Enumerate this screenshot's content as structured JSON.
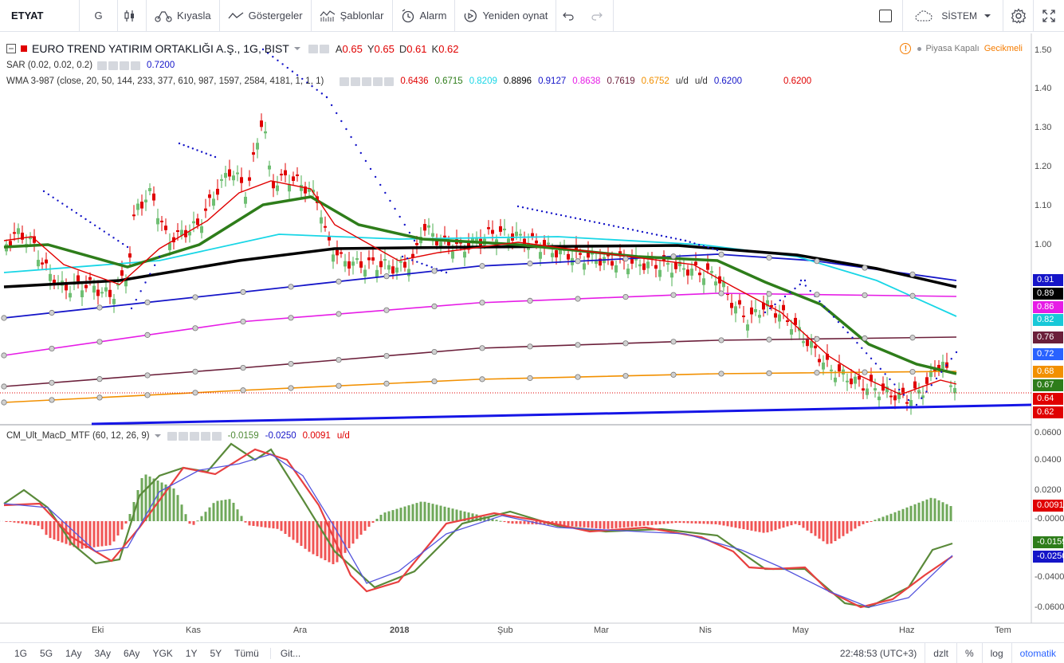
{
  "toolbar": {
    "symbol": "ETYAT",
    "interval": "G",
    "compare": "Kıyasla",
    "indicators": "Göstergeler",
    "templates": "Şablonlar",
    "alert": "Alarm",
    "replay": "Yeniden oynat",
    "system": "SİSTEM"
  },
  "legend": {
    "title": "EURO TREND YATIRIM ORTAKLIĞI A.Ş., 1G, BIST",
    "ohlc": [
      {
        "label": "A",
        "value": "0.65"
      },
      {
        "label": "Y",
        "value": "0.65"
      },
      {
        "label": "D",
        "value": "0.61"
      },
      {
        "label": "K",
        "value": "0.62"
      }
    ],
    "sar": {
      "label": "SAR (0.02, 0.02, 0.2)",
      "value": "0.7200"
    },
    "wma": {
      "label": "WMA 3-987 (close, 20, 50, 144, 233, 377, 610, 987, 1597, 2584, 4181, 1, 1, 1)",
      "values": [
        {
          "v": "0.6436",
          "color": "#e00000"
        },
        {
          "v": "0.6715",
          "color": "#2e7d1a"
        },
        {
          "v": "0.8209",
          "color": "#18d6e6"
        },
        {
          "v": "0.8896",
          "color": "#000000"
        },
        {
          "v": "0.9127",
          "color": "#1515c8"
        },
        {
          "v": "0.8638",
          "color": "#e61ce6"
        },
        {
          "v": "0.7619",
          "color": "#6b1f3a"
        },
        {
          "v": "0.6752",
          "color": "#f29000"
        },
        {
          "v": "u/d",
          "color": "#333333"
        },
        {
          "v": "u/d",
          "color": "#333333"
        },
        {
          "v": "0.6200",
          "color": "#1515c8"
        },
        {
          "v": "0.6200",
          "color": "#e00000"
        }
      ]
    },
    "macd": {
      "label": "CM_Ult_MacD_MTF (60, 12, 26, 9)",
      "values": [
        {
          "v": "-0.0159",
          "color": "#4f8a36"
        },
        {
          "v": "-0.0250",
          "color": "#1515c8"
        },
        {
          "v": "0.0091",
          "color": "#e00000"
        },
        {
          "v": "u/d",
          "color": "#e00000"
        }
      ]
    }
  },
  "status": {
    "market": "Piyasa Kapalı",
    "delay": "Gecikmeli"
  },
  "price_axis": [
    "1.50",
    "1.40",
    "1.30",
    "1.20",
    "1.10",
    "1.00"
  ],
  "price_labels": [
    {
      "text": "0.91",
      "color": "#1515c8"
    },
    {
      "text": "0.89",
      "color": "#000000"
    },
    {
      "text": "0.86",
      "color": "#e61ce6"
    },
    {
      "text": "0.82",
      "color": "#18c8d8"
    },
    {
      "text": "0.76",
      "color": "#6b1f3a"
    },
    {
      "text": "0.72",
      "color": "#2962ff"
    },
    {
      "text": "0.68",
      "color": "#f29000"
    },
    {
      "text": "0.67",
      "color": "#2e7d1a"
    },
    {
      "text": "0.64",
      "color": "#e00000"
    },
    {
      "text": "0.62",
      "color": "#e00000"
    }
  ],
  "macd_axis": [
    "0.0600",
    "0.0400",
    "0.0200",
    "-0.0000",
    "-0.0400",
    "-0.0600"
  ],
  "macd_labels": [
    {
      "text": "0.0091",
      "color": "#e00000"
    },
    {
      "text": "-0.0159",
      "color": "#2e7d1a"
    },
    {
      "text": "-0.0250",
      "color": "#1515c8"
    }
  ],
  "time_axis": [
    "Eki",
    "Kas",
    "Ara",
    "2018",
    "Şub",
    "Mar",
    "Nis",
    "May",
    "Haz",
    "Tem"
  ],
  "ranges": [
    "1G",
    "5G",
    "1Ay",
    "3Ay",
    "6Ay",
    "YGK",
    "1Y",
    "5Y",
    "Tümü",
    "Git..."
  ],
  "bottom": {
    "time": "22:48:53 (UTC+3)",
    "adj": "dzlt",
    "pct": "%",
    "log": "log",
    "auto": "otomatik"
  }
}
